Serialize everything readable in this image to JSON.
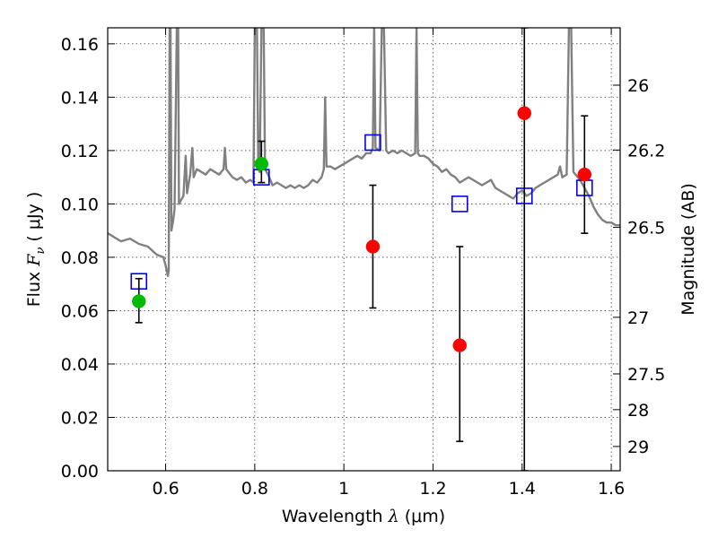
{
  "chart_data": {
    "type": "scatter",
    "xlabel_prefix": "Wavelength",
    "xlabel_symbol": "λ",
    "xlabel_unit": "(μm)",
    "ylabel_prefix": "Flux",
    "ylabel_symbol": "F",
    "ylabel_subscript": "ν",
    "ylabel_unit": "( μJy )",
    "y2label": "Magnitude (AB)",
    "xlim": [
      0.47,
      1.62
    ],
    "ylim": [
      0.0,
      0.166
    ],
    "grid": true,
    "x_ticks": [
      0.6,
      0.8,
      1.0,
      1.2,
      1.4,
      1.6
    ],
    "x_tick_labels": [
      "0.6",
      "0.8",
      "1",
      "1.2",
      "1.4",
      "1.6"
    ],
    "y_ticks": [
      0.0,
      0.02,
      0.04,
      0.06,
      0.08,
      0.1,
      0.12,
      0.14,
      0.16
    ],
    "y_tick_labels": [
      "0.00",
      "0.02",
      "0.04",
      "0.06",
      "0.08",
      "0.10",
      "0.12",
      "0.14",
      "0.16"
    ],
    "y2_ticks": [
      {
        "label": "26",
        "flux": 0.1445
      },
      {
        "label": "26.2",
        "flux": 0.1202
      },
      {
        "label": "26.5",
        "flux": 0.0912
      },
      {
        "label": "27",
        "flux": 0.0575
      },
      {
        "label": "27.5",
        "flux": 0.0363
      },
      {
        "label": "28",
        "flux": 0.0229
      },
      {
        "label": "29",
        "flux": 0.0091
      }
    ],
    "series": [
      {
        "kind": "model_spectrum",
        "color": "#808080",
        "points": [
          [
            0.47,
            0.089
          ],
          [
            0.49,
            0.087
          ],
          [
            0.5,
            0.086
          ],
          [
            0.52,
            0.087
          ],
          [
            0.54,
            0.085
          ],
          [
            0.56,
            0.084
          ],
          [
            0.58,
            0.081
          ],
          [
            0.595,
            0.08
          ],
          [
            0.6,
            0.077
          ],
          [
            0.605,
            0.073
          ],
          [
            0.607,
            0.075
          ],
          [
            0.609,
            0.166
          ],
          [
            0.611,
            0.166
          ],
          [
            0.613,
            0.09
          ],
          [
            0.617,
            0.094
          ],
          [
            0.62,
            0.098
          ],
          [
            0.625,
            0.166
          ],
          [
            0.628,
            0.166
          ],
          [
            0.63,
            0.1
          ],
          [
            0.64,
            0.103
          ],
          [
            0.645,
            0.118
          ],
          [
            0.648,
            0.104
          ],
          [
            0.655,
            0.111
          ],
          [
            0.66,
            0.121
          ],
          [
            0.663,
            0.11
          ],
          [
            0.67,
            0.113
          ],
          [
            0.68,
            0.112
          ],
          [
            0.69,
            0.111
          ],
          [
            0.7,
            0.113
          ],
          [
            0.71,
            0.112
          ],
          [
            0.72,
            0.111
          ],
          [
            0.73,
            0.113
          ],
          [
            0.733,
            0.121
          ],
          [
            0.736,
            0.113
          ],
          [
            0.75,
            0.11
          ],
          [
            0.76,
            0.109
          ],
          [
            0.77,
            0.11
          ],
          [
            0.78,
            0.108
          ],
          [
            0.79,
            0.109
          ],
          [
            0.797,
            0.108
          ],
          [
            0.8,
            0.166
          ],
          [
            0.805,
            0.166
          ],
          [
            0.808,
            0.113
          ],
          [
            0.811,
            0.112
          ],
          [
            0.815,
            0.166
          ],
          [
            0.82,
            0.166
          ],
          [
            0.823,
            0.113
          ],
          [
            0.83,
            0.111
          ],
          [
            0.84,
            0.107
          ],
          [
            0.85,
            0.108
          ],
          [
            0.86,
            0.107
          ],
          [
            0.87,
            0.106
          ],
          [
            0.88,
            0.107
          ],
          [
            0.89,
            0.106
          ],
          [
            0.9,
            0.107
          ],
          [
            0.91,
            0.106
          ],
          [
            0.92,
            0.107
          ],
          [
            0.93,
            0.109
          ],
          [
            0.94,
            0.108
          ],
          [
            0.95,
            0.11
          ],
          [
            0.955,
            0.113
          ],
          [
            0.958,
            0.14
          ],
          [
            0.961,
            0.114
          ],
          [
            0.97,
            0.114
          ],
          [
            0.98,
            0.113
          ],
          [
            0.99,
            0.114
          ],
          [
            1.0,
            0.115
          ],
          [
            1.01,
            0.116
          ],
          [
            1.02,
            0.117
          ],
          [
            1.03,
            0.118
          ],
          [
            1.04,
            0.117
          ],
          [
            1.05,
            0.119
          ],
          [
            1.06,
            0.119
          ],
          [
            1.065,
            0.121
          ],
          [
            1.068,
            0.166
          ],
          [
            1.071,
            0.121
          ],
          [
            1.08,
            0.12
          ],
          [
            1.085,
            0.166
          ],
          [
            1.09,
            0.166
          ],
          [
            1.095,
            0.12
          ],
          [
            1.1,
            0.119
          ],
          [
            1.11,
            0.12
          ],
          [
            1.12,
            0.119
          ],
          [
            1.13,
            0.12
          ],
          [
            1.14,
            0.119
          ],
          [
            1.15,
            0.118
          ],
          [
            1.16,
            0.119
          ],
          [
            1.163,
            0.166
          ],
          [
            1.166,
            0.119
          ],
          [
            1.17,
            0.118
          ],
          [
            1.18,
            0.118
          ],
          [
            1.19,
            0.117
          ],
          [
            1.2,
            0.115
          ],
          [
            1.21,
            0.114
          ],
          [
            1.22,
            0.112
          ],
          [
            1.23,
            0.113
          ],
          [
            1.24,
            0.111
          ],
          [
            1.25,
            0.11
          ],
          [
            1.26,
            0.108
          ],
          [
            1.27,
            0.109
          ],
          [
            1.28,
            0.11
          ],
          [
            1.29,
            0.109
          ],
          [
            1.3,
            0.108
          ],
          [
            1.31,
            0.107
          ],
          [
            1.32,
            0.108
          ],
          [
            1.33,
            0.109
          ],
          [
            1.34,
            0.106
          ],
          [
            1.35,
            0.105
          ],
          [
            1.36,
            0.104
          ],
          [
            1.37,
            0.103
          ],
          [
            1.38,
            0.102
          ],
          [
            1.39,
            0.104
          ],
          [
            1.4,
            0.105
          ],
          [
            1.41,
            0.103
          ],
          [
            1.42,
            0.104
          ],
          [
            1.43,
            0.106
          ],
          [
            1.44,
            0.107
          ],
          [
            1.45,
            0.108
          ],
          [
            1.46,
            0.109
          ],
          [
            1.47,
            0.11
          ],
          [
            1.48,
            0.111
          ],
          [
            1.485,
            0.114
          ],
          [
            1.49,
            0.11
          ],
          [
            1.5,
            0.111
          ],
          [
            1.505,
            0.166
          ],
          [
            1.51,
            0.166
          ],
          [
            1.515,
            0.112
          ],
          [
            1.52,
            0.111
          ],
          [
            1.53,
            0.109
          ],
          [
            1.54,
            0.106
          ],
          [
            1.55,
            0.103
          ],
          [
            1.56,
            0.099
          ],
          [
            1.57,
            0.096
          ],
          [
            1.58,
            0.094
          ],
          [
            1.59,
            0.093
          ],
          [
            1.6,
            0.093
          ],
          [
            1.61,
            0.092
          ],
          [
            1.62,
            0.092
          ]
        ]
      },
      {
        "kind": "model_band_flux",
        "marker": "open-square",
        "color": "#0000ff",
        "points": [
          {
            "x": 0.54,
            "y": 0.071
          },
          {
            "x": 0.815,
            "y": 0.11
          },
          {
            "x": 1.065,
            "y": 0.123
          },
          {
            "x": 1.26,
            "y": 0.1
          },
          {
            "x": 1.405,
            "y": 0.103
          },
          {
            "x": 1.54,
            "y": 0.106
          }
        ]
      },
      {
        "kind": "observed_optical",
        "marker": "filled-circle",
        "color": "#00bb00",
        "points": [
          {
            "x": 0.54,
            "y": 0.0635,
            "yerr_low": 0.008,
            "yerr_high": 0.0085
          },
          {
            "x": 0.815,
            "y": 0.115,
            "yerr_low": 0.007,
            "yerr_high": 0.0085
          }
        ]
      },
      {
        "kind": "observed_nir",
        "marker": "filled-circle",
        "color": "#ff0000",
        "points": [
          {
            "x": 1.065,
            "y": 0.084,
            "yerr_low": 0.023,
            "yerr_high": 0.023
          },
          {
            "x": 1.26,
            "y": 0.047,
            "yerr_low": 0.036,
            "yerr_high": 0.037
          },
          {
            "x": 1.405,
            "y": 0.134,
            "yerr_low": 0.134,
            "yerr_high": 0.032
          },
          {
            "x": 1.54,
            "y": 0.111,
            "yerr_low": 0.022,
            "yerr_high": 0.022
          }
        ]
      }
    ]
  }
}
